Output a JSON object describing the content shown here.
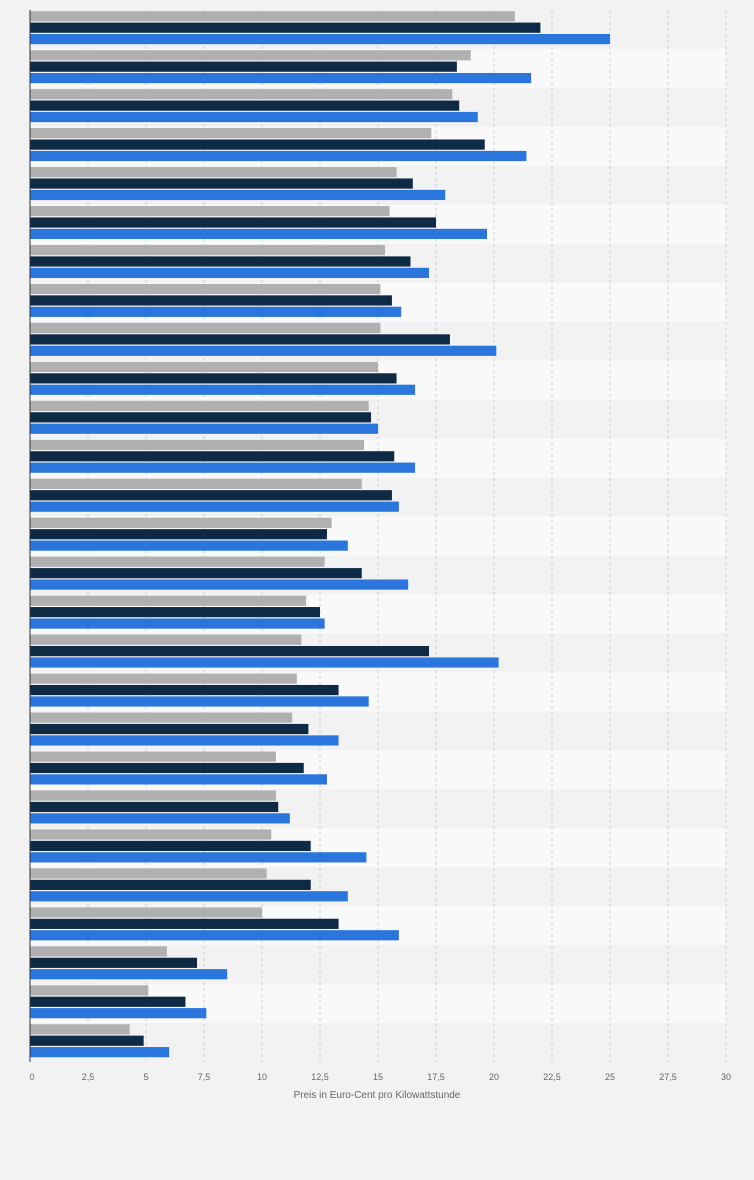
{
  "chart_data": {
    "type": "bar",
    "orientation": "horizontal",
    "categories": [
      "",
      "",
      "",
      "",
      "",
      "",
      "",
      "",
      "",
      "",
      "",
      "",
      "",
      "",
      "",
      "",
      "",
      "",
      "",
      "",
      "",
      "",
      "",
      "",
      "",
      "",
      ""
    ],
    "series": [
      {
        "color": "#b0b0b0",
        "values": [
          20.9,
          19.0,
          18.2,
          17.3,
          15.8,
          15.5,
          15.3,
          15.1,
          15.1,
          15.0,
          14.6,
          14.4,
          14.3,
          13.0,
          12.7,
          11.9,
          11.7,
          11.5,
          11.3,
          10.6,
          10.6,
          10.4,
          10.2,
          10.0,
          5.9,
          5.1,
          4.3
        ]
      },
      {
        "color": "#0f2a45",
        "values": [
          22.0,
          18.4,
          18.5,
          19.6,
          16.5,
          17.5,
          16.4,
          15.6,
          18.1,
          15.8,
          14.7,
          15.7,
          15.6,
          12.8,
          14.3,
          12.5,
          17.2,
          13.3,
          12.0,
          11.8,
          10.7,
          12.1,
          12.1,
          13.3,
          7.2,
          6.7,
          4.9
        ]
      },
      {
        "color": "#2a76dd",
        "values": [
          25.0,
          21.6,
          19.3,
          21.4,
          17.9,
          19.7,
          17.2,
          16.0,
          20.1,
          16.6,
          15.0,
          16.6,
          15.9,
          13.7,
          16.3,
          12.7,
          20.2,
          14.6,
          13.3,
          12.8,
          11.2,
          14.5,
          13.7,
          15.9,
          8.5,
          7.6,
          6.0
        ]
      }
    ],
    "xlim": [
      0,
      30
    ],
    "xticks": [
      0,
      2.5,
      5,
      7.5,
      10,
      12.5,
      15,
      17.5,
      20,
      22.5,
      25,
      27.5,
      30
    ],
    "xtick_labels": [
      "0",
      "2,5",
      "5",
      "7,5",
      "10",
      "12,5",
      "15",
      "17,5",
      "20",
      "22,5",
      "25",
      "27,5",
      "30"
    ],
    "xlabel": "Preis in Euro-Cent pro Kilowattstunde",
    "ylabel": "",
    "title": "",
    "grid": true,
    "legend": "none"
  }
}
